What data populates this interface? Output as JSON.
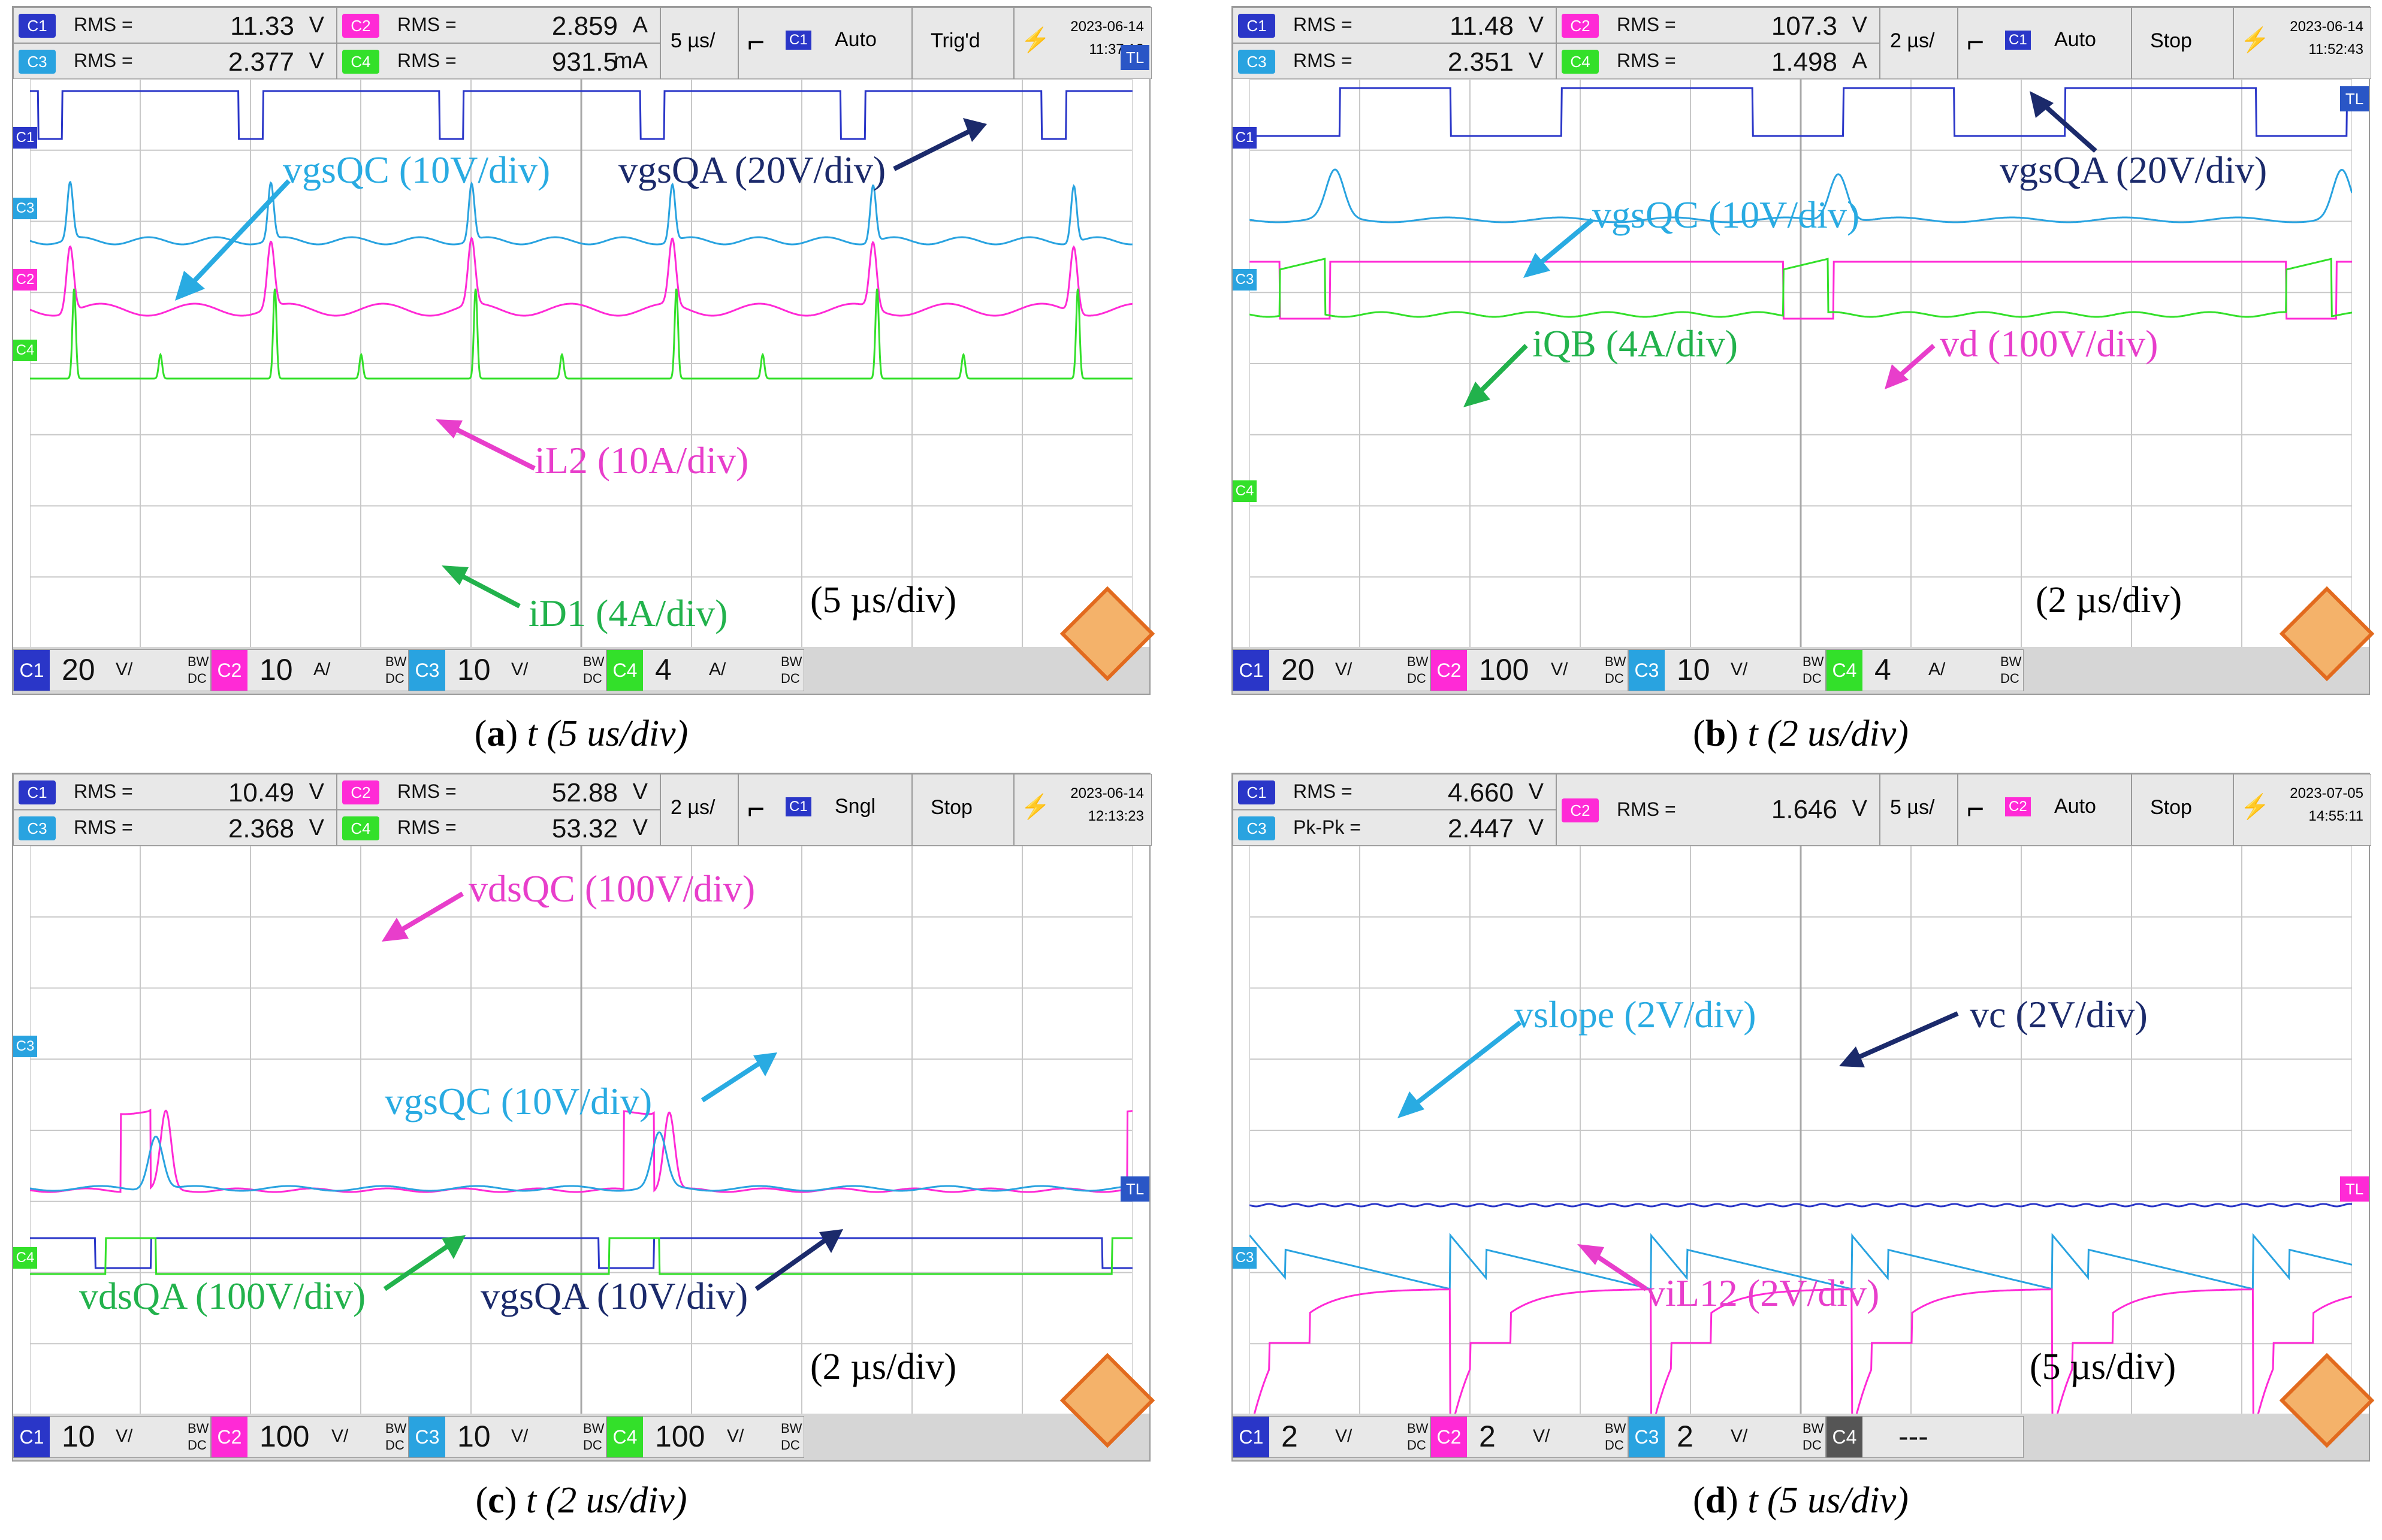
{
  "chart_data": [
    {
      "type": "line",
      "panel": "a",
      "caption": {
        "letter": "a",
        "text": " t (5 us/div)"
      },
      "header": {
        "row1": [
          {
            "ch": "C1",
            "mode": "RMS =",
            "value": "11.33",
            "unit": "V"
          },
          {
            "ch": "C2",
            "mode": "RMS =",
            "value": "2.859",
            "unit": "A"
          }
        ],
        "row2": [
          {
            "ch": "C3",
            "mode": "RMS =",
            "value": "2.377",
            "unit": "V"
          },
          {
            "ch": "C4",
            "mode": "RMS =",
            "value": "931.5",
            "unit": "mA"
          }
        ],
        "timebase": "5 µs/",
        "trig_ch": "C1",
        "trig_mode": "Auto",
        "status": "Trig'd",
        "date": "2023-06-14",
        "time": "11:37:18"
      },
      "footer": [
        {
          "ch": "C1",
          "scale": "20",
          "unit": "V/"
        },
        {
          "ch": "C2",
          "scale": "10",
          "unit": "A/"
        },
        {
          "ch": "C3",
          "scale": "10",
          "unit": "V/"
        },
        {
          "ch": "C4",
          "scale": "4",
          "unit": "A/"
        }
      ],
      "timediv": "(5 µs/div)",
      "annotations": [
        {
          "text": "vgsQC (10V/div)",
          "color": "#29abe2"
        },
        {
          "text": "vgsQA (20V/div)",
          "color": "#1b2a6b"
        },
        {
          "text": "iL2 (10A/div)",
          "color": "#e83ecb"
        },
        {
          "text": "iD1 (4A/div)",
          "color": "#22b24c"
        }
      ]
    },
    {
      "type": "line",
      "panel": "b",
      "caption": {
        "letter": "b",
        "text": " t (2 us/div)"
      },
      "header": {
        "row1": [
          {
            "ch": "C1",
            "mode": "RMS =",
            "value": "11.48",
            "unit": "V"
          },
          {
            "ch": "C2",
            "mode": "RMS =",
            "value": "107.3",
            "unit": "V"
          }
        ],
        "row2": [
          {
            "ch": "C3",
            "mode": "RMS =",
            "value": "2.351",
            "unit": "V"
          },
          {
            "ch": "C4",
            "mode": "RMS =",
            "value": "1.498",
            "unit": "A"
          }
        ],
        "timebase": "2 µs/",
        "trig_ch": "C1",
        "trig_mode": "Auto",
        "status": "Stop",
        "date": "2023-06-14",
        "time": "11:52:43"
      },
      "footer": [
        {
          "ch": "C1",
          "scale": "20",
          "unit": "V/"
        },
        {
          "ch": "C2",
          "scale": "100",
          "unit": "V/"
        },
        {
          "ch": "C3",
          "scale": "10",
          "unit": "V/"
        },
        {
          "ch": "C4",
          "scale": "4",
          "unit": "A/"
        }
      ],
      "timediv": "(2 µs/div)",
      "annotations": [
        {
          "text": "vgsQA (20V/div)",
          "color": "#1b2a6b"
        },
        {
          "text": "vgsQC (10V/div)",
          "color": "#29abe2"
        },
        {
          "text": "iQB (4A/div)",
          "color": "#22b24c"
        },
        {
          "text": "vd (100V/div)",
          "color": "#e83ecb"
        }
      ]
    },
    {
      "type": "line",
      "panel": "c",
      "caption": {
        "letter": "c",
        "text": " t (2 us/div)"
      },
      "header": {
        "row1": [
          {
            "ch": "C1",
            "mode": "RMS =",
            "value": "10.49",
            "unit": "V"
          },
          {
            "ch": "C2",
            "mode": "RMS =",
            "value": "52.88",
            "unit": "V"
          }
        ],
        "row2": [
          {
            "ch": "C3",
            "mode": "RMS =",
            "value": "2.368",
            "unit": "V"
          },
          {
            "ch": "C4",
            "mode": "RMS =",
            "value": "53.32",
            "unit": "V"
          }
        ],
        "timebase": "2 µs/",
        "trig_ch": "C1",
        "trig_mode": "Sngl",
        "status": "Stop",
        "date": "2023-06-14",
        "time": "12:13:23"
      },
      "footer": [
        {
          "ch": "C1",
          "scale": "10",
          "unit": "V/"
        },
        {
          "ch": "C2",
          "scale": "100",
          "unit": "V/"
        },
        {
          "ch": "C3",
          "scale": "10",
          "unit": "V/"
        },
        {
          "ch": "C4",
          "scale": "100",
          "unit": "V/"
        }
      ],
      "timediv": "(2 µs/div)",
      "annotations": [
        {
          "text": "vdsQC (100V/div)",
          "color": "#e83ecb"
        },
        {
          "text": "vgsQC (10V/div)",
          "color": "#29abe2"
        },
        {
          "text": "vdsQA (100V/div)",
          "color": "#22b24c"
        },
        {
          "text": "vgsQA (10V/div)",
          "color": "#1b2a6b"
        }
      ]
    },
    {
      "type": "line",
      "panel": "d",
      "caption": {
        "letter": "d",
        "text": " t (5 us/div)"
      },
      "header": {
        "row1": [
          {
            "ch": "C1",
            "mode": "RMS =",
            "value": "4.660",
            "unit": "V"
          },
          {
            "ch": "C2",
            "mode": "RMS =",
            "value": "1.646",
            "unit": "V"
          }
        ],
        "row2": [
          {
            "ch": "C3",
            "mode": "Pk-Pk =",
            "value": "2.447",
            "unit": "V"
          },
          {
            "ch": "",
            "mode": "",
            "value": "",
            "unit": ""
          }
        ],
        "timebase": "5 µs/",
        "trig_ch": "C2",
        "trig_mode": "Auto",
        "status": "Stop",
        "date": "2023-07-05",
        "time": "14:55:11"
      },
      "footer": [
        {
          "ch": "C1",
          "scale": "2",
          "unit": "V/"
        },
        {
          "ch": "C2",
          "scale": "2",
          "unit": "V/"
        },
        {
          "ch": "C3",
          "scale": "2",
          "unit": "V/"
        },
        {
          "ch": "C4",
          "scale": "---",
          "unit": ""
        }
      ],
      "timediv": "(5 µs/div)",
      "annotations": [
        {
          "text": "vslope (2V/div)",
          "color": "#29abe2"
        },
        {
          "text": "vc (2V/div)",
          "color": "#1b2a6b"
        },
        {
          "text": "viL12 (2V/div)",
          "color": "#e83ecb"
        }
      ]
    }
  ],
  "colors": {
    "C1": "#2a36c8",
    "C2": "#ff2ad6",
    "C3": "#29a3e0",
    "C4": "#33e02a"
  }
}
